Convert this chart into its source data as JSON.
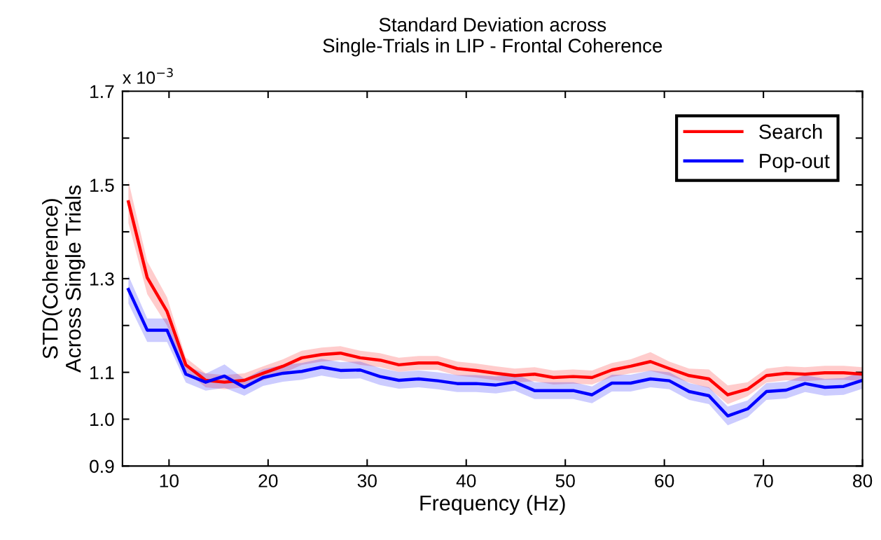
{
  "chart_data": {
    "type": "line",
    "title": "Standard Deviation across\nSingle-Trials in LIP - Frontal Coherence",
    "xlabel": "Frequency (Hz)",
    "ylabel": "STD(Coherence)\nAcross Single Trials",
    "annotations": [
      "x 10$^{−3}$"
    ],
    "x": [
      5.9,
      7.8,
      9.8,
      11.7,
      13.7,
      15.6,
      17.6,
      19.5,
      21.5,
      23.4,
      25.4,
      27.3,
      29.3,
      31.3,
      33.2,
      35.2,
      37.1,
      39.1,
      41.0,
      43.0,
      44.9,
      46.9,
      48.8,
      50.8,
      52.7,
      54.7,
      56.6,
      58.6,
      60.5,
      62.5,
      64.5,
      66.4,
      68.4,
      70.3,
      72.3,
      74.2,
      76.2,
      78.1,
      80.0
    ],
    "series": [
      {
        "name": "Search",
        "color": "#ff0000",
        "values": [
          1.464,
          1.302,
          1.23,
          1.116,
          1.083,
          1.079,
          1.083,
          1.098,
          1.113,
          1.131,
          1.138,
          1.141,
          1.131,
          1.126,
          1.116,
          1.12,
          1.12,
          1.108,
          1.104,
          1.098,
          1.093,
          1.096,
          1.089,
          1.091,
          1.089,
          1.105,
          1.113,
          1.123,
          1.108,
          1.093,
          1.086,
          1.052,
          1.064,
          1.093,
          1.098,
          1.096,
          1.099,
          1.099,
          1.096
        ],
        "lower": [
          1.419,
          1.267,
          1.2,
          1.101,
          1.068,
          1.064,
          1.068,
          1.083,
          1.098,
          1.116,
          1.123,
          1.126,
          1.116,
          1.111,
          1.101,
          1.105,
          1.105,
          1.093,
          1.089,
          1.083,
          1.078,
          1.081,
          1.074,
          1.076,
          1.074,
          1.09,
          1.098,
          1.103,
          1.093,
          1.078,
          1.066,
          1.032,
          1.049,
          1.078,
          1.083,
          1.081,
          1.084,
          1.084,
          1.081
        ],
        "upper": [
          1.509,
          1.337,
          1.26,
          1.131,
          1.098,
          1.094,
          1.098,
          1.113,
          1.128,
          1.146,
          1.153,
          1.156,
          1.146,
          1.141,
          1.131,
          1.135,
          1.135,
          1.123,
          1.119,
          1.113,
          1.108,
          1.111,
          1.104,
          1.106,
          1.104,
          1.12,
          1.128,
          1.143,
          1.123,
          1.108,
          1.106,
          1.072,
          1.079,
          1.108,
          1.113,
          1.111,
          1.114,
          1.114,
          1.111
        ]
      },
      {
        "name": "Pop-out",
        "color": "#0000ff",
        "values": [
          1.277,
          1.19,
          1.19,
          1.096,
          1.079,
          1.092,
          1.068,
          1.089,
          1.098,
          1.102,
          1.111,
          1.104,
          1.105,
          1.091,
          1.083,
          1.086,
          1.082,
          1.076,
          1.076,
          1.073,
          1.079,
          1.061,
          1.061,
          1.061,
          1.052,
          1.077,
          1.077,
          1.086,
          1.082,
          1.059,
          1.05,
          1.007,
          1.022,
          1.059,
          1.062,
          1.076,
          1.068,
          1.07,
          1.083
        ],
        "lower": [
          1.247,
          1.165,
          1.165,
          1.078,
          1.061,
          1.067,
          1.05,
          1.071,
          1.08,
          1.084,
          1.093,
          1.086,
          1.087,
          1.073,
          1.065,
          1.068,
          1.064,
          1.058,
          1.058,
          1.055,
          1.061,
          1.043,
          1.043,
          1.043,
          1.034,
          1.059,
          1.059,
          1.068,
          1.064,
          1.041,
          1.032,
          0.987,
          1.004,
          1.041,
          1.044,
          1.058,
          1.05,
          1.052,
          1.065
        ],
        "upper": [
          1.307,
          1.215,
          1.215,
          1.114,
          1.097,
          1.117,
          1.086,
          1.107,
          1.116,
          1.12,
          1.129,
          1.122,
          1.123,
          1.109,
          1.101,
          1.104,
          1.1,
          1.094,
          1.094,
          1.091,
          1.097,
          1.079,
          1.079,
          1.079,
          1.07,
          1.095,
          1.095,
          1.104,
          1.1,
          1.077,
          1.068,
          1.027,
          1.04,
          1.077,
          1.08,
          1.094,
          1.086,
          1.088,
          1.101
        ]
      }
    ],
    "xlim": [
      5.3,
      80
    ],
    "xticks": [
      10,
      20,
      30,
      40,
      50,
      60,
      70,
      80
    ],
    "ylim": [
      0.9,
      1.7
    ],
    "yticks": [
      0.9,
      {
        "value": 1.0,
        "label": "1.0"
      },
      1.1,
      {
        "value": 1.2,
        "label": null
      },
      1.3,
      {
        "value": 1.4,
        "label": null
      },
      1.5,
      {
        "value": 1.6,
        "label": null
      },
      1.7
    ],
    "legend": "top right",
    "grid": false,
    "marker": "none",
    "line_style": "solid"
  }
}
